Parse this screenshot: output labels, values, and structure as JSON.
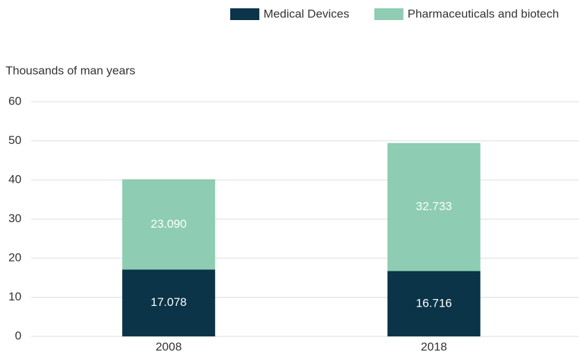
{
  "chart_data": {
    "type": "stacked_bar",
    "y_label": "Thousands of man years",
    "categories": [
      "2008",
      "2018"
    ],
    "series": [
      {
        "name": "Medical Devices",
        "color": "#0b3448",
        "values": [
          17.078,
          16.716
        ],
        "value_labels": [
          "17.078",
          "16.716"
        ]
      },
      {
        "name": "Pharmaceuticals and biotech",
        "color": "#8ecdb3",
        "values": [
          23.09,
          32.733
        ],
        "value_labels": [
          "23.090",
          "32.733"
        ]
      }
    ],
    "ylim": [
      0,
      60
    ],
    "yticks": [
      0,
      10,
      20,
      30,
      40,
      50,
      60
    ],
    "grid": true,
    "legend": "top"
  }
}
